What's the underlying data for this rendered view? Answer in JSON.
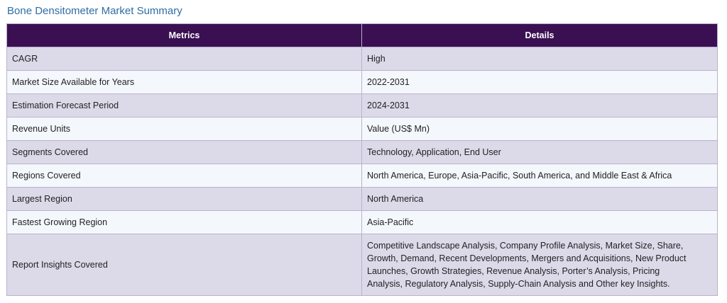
{
  "title": "Bone Densitometer Market Summary",
  "table": {
    "headers": [
      "Metrics",
      "Details"
    ],
    "rows": [
      {
        "metric": "CAGR",
        "detail": "High"
      },
      {
        "metric": "Market Size Available for Years",
        "detail": "2022-2031"
      },
      {
        "metric": "Estimation Forecast Period",
        "detail": "2024-2031"
      },
      {
        "metric": "Revenue Units",
        "detail": "Value (US$ Mn)"
      },
      {
        "metric": "Segments Covered",
        "detail": "Technology, Application, End User"
      },
      {
        "metric": "Regions Covered",
        "detail": "North America, Europe, Asia-Pacific, South America, and Middle East & Africa"
      },
      {
        "metric": "Largest Region",
        "detail": "North America"
      },
      {
        "metric": "Fastest Growing Region",
        "detail": "Asia-Pacific"
      },
      {
        "metric": "Report Insights Covered",
        "detail": "Competitive Landscape Analysis, Company Profile Analysis, Market Size, Share, Growth, Demand, Recent Developments, Mergers and Acquisitions, New Product Launches, Growth Strategies, Revenue Analysis, Porter’s Analysis, Pricing Analysis, Regulatory Analysis, Supply-Chain Analysis and Other key Insights."
      }
    ]
  }
}
